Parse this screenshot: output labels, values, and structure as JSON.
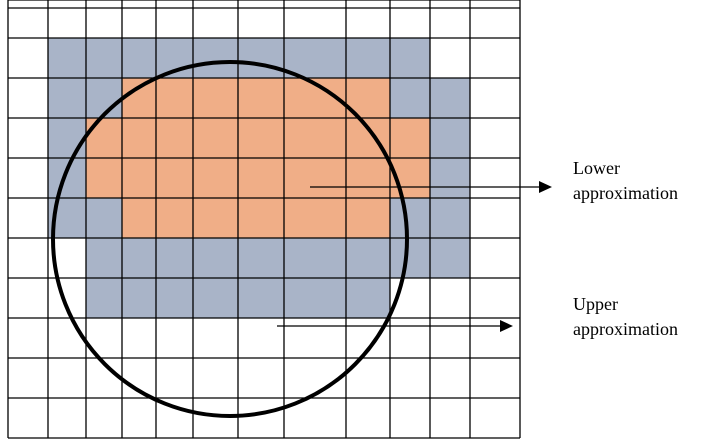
{
  "diagram": {
    "colors": {
      "background": "#ffffff",
      "grid_line": "#000000",
      "upper_region": "#a9b4c8",
      "lower_region": "#f0ae87",
      "circle": "#000000",
      "arrow": "#000000"
    },
    "grid": {
      "columns": 12,
      "rows": 12,
      "lower_cells": [
        [
          3,
          3
        ],
        [
          3,
          4
        ],
        [
          3,
          5
        ],
        [
          3,
          6
        ],
        [
          3,
          7
        ],
        [
          3,
          8
        ],
        [
          4,
          2
        ],
        [
          4,
          3
        ],
        [
          4,
          4
        ],
        [
          4,
          5
        ],
        [
          4,
          6
        ],
        [
          4,
          7
        ],
        [
          4,
          8
        ],
        [
          4,
          9
        ],
        [
          5,
          2
        ],
        [
          5,
          3
        ],
        [
          5,
          4
        ],
        [
          5,
          5
        ],
        [
          5,
          6
        ],
        [
          5,
          7
        ],
        [
          5,
          8
        ],
        [
          5,
          9
        ],
        [
          6,
          3
        ],
        [
          6,
          4
        ],
        [
          6,
          5
        ],
        [
          6,
          6
        ],
        [
          6,
          7
        ],
        [
          6,
          8
        ]
      ],
      "upper_cells": [
        [
          2,
          1
        ],
        [
          2,
          2
        ],
        [
          2,
          3
        ],
        [
          2,
          4
        ],
        [
          2,
          5
        ],
        [
          2,
          6
        ],
        [
          2,
          7
        ],
        [
          2,
          8
        ],
        [
          2,
          9
        ],
        [
          3,
          1
        ],
        [
          3,
          2
        ],
        [
          3,
          3
        ],
        [
          3,
          4
        ],
        [
          3,
          5
        ],
        [
          3,
          6
        ],
        [
          3,
          7
        ],
        [
          3,
          8
        ],
        [
          3,
          9
        ],
        [
          3,
          10
        ],
        [
          4,
          1
        ],
        [
          4,
          2
        ],
        [
          4,
          3
        ],
        [
          4,
          4
        ],
        [
          4,
          5
        ],
        [
          4,
          6
        ],
        [
          4,
          7
        ],
        [
          4,
          8
        ],
        [
          4,
          9
        ],
        [
          4,
          10
        ],
        [
          5,
          1
        ],
        [
          5,
          2
        ],
        [
          5,
          3
        ],
        [
          5,
          4
        ],
        [
          5,
          5
        ],
        [
          5,
          6
        ],
        [
          5,
          7
        ],
        [
          5,
          8
        ],
        [
          5,
          9
        ],
        [
          5,
          10
        ],
        [
          6,
          1
        ],
        [
          6,
          2
        ],
        [
          6,
          3
        ],
        [
          6,
          4
        ],
        [
          6,
          5
        ],
        [
          6,
          6
        ],
        [
          6,
          7
        ],
        [
          6,
          8
        ],
        [
          6,
          9
        ],
        [
          6,
          10
        ],
        [
          7,
          2
        ],
        [
          7,
          3
        ],
        [
          7,
          4
        ],
        [
          7,
          5
        ],
        [
          7,
          6
        ],
        [
          7,
          7
        ],
        [
          7,
          8
        ],
        [
          7,
          9
        ],
        [
          7,
          10
        ],
        [
          8,
          2
        ],
        [
          8,
          3
        ],
        [
          8,
          4
        ],
        [
          8,
          5
        ],
        [
          8,
          6
        ],
        [
          8,
          7
        ],
        [
          8,
          8
        ]
      ]
    },
    "labels": {
      "lower": [
        "Lower",
        "approximation"
      ],
      "upper": [
        "Upper",
        "approximation"
      ]
    }
  }
}
